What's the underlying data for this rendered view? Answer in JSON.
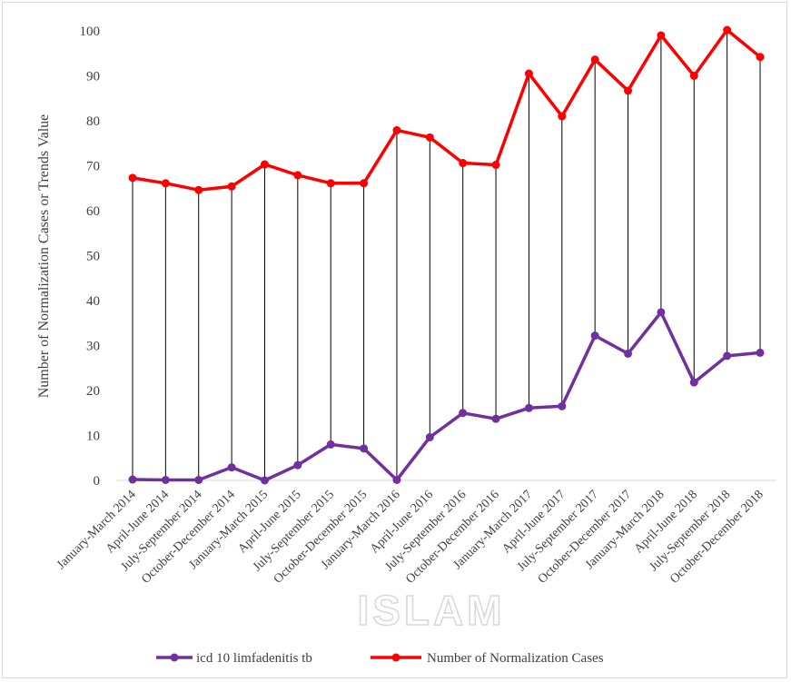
{
  "chart_data": {
    "type": "line",
    "ylabel": "Number of Normalization Cases or Trends Value",
    "xlabel": "",
    "ylim": [
      0,
      100
    ],
    "yticks": [
      0,
      10,
      20,
      30,
      40,
      50,
      60,
      70,
      80,
      90,
      100
    ],
    "grid": false,
    "legend_position": "bottom",
    "drop_lines": true,
    "categories": [
      "January-March 2014",
      "April-June 2014",
      "July-September 2014",
      "October-December 2014",
      "January-March 2015",
      "April-June 2015",
      "July-September 2015",
      "October-December 2015",
      "January-March 2016",
      "April-June 2016",
      "July-September 2016",
      "October-December 2016",
      "January-March 2017",
      "April-June 2017",
      "July-September 2017",
      "October-December 2017",
      "January-March 2018",
      "April-June 2018",
      "July-September 2018",
      "October-December 2018"
    ],
    "series": [
      {
        "name": "icd 10 limfadenitis tb",
        "color": "#7030a0",
        "values": [
          0.2,
          0.1,
          0.1,
          2.9,
          0.0,
          3.4,
          8.0,
          7.1,
          0.1,
          9.6,
          15.0,
          13.7,
          16.1,
          16.5,
          32.2,
          28.2,
          37.4,
          21.8,
          27.7,
          28.4
        ]
      },
      {
        "name": "Number of Normalization Cases",
        "color": "#ff0000",
        "values": [
          67.3,
          66.1,
          64.6,
          65.4,
          70.3,
          67.9,
          66.1,
          66.1,
          77.9,
          76.3,
          70.6,
          70.2,
          90.5,
          81.0,
          93.6,
          86.7,
          99.0,
          90.0,
          100.2,
          94.2
        ]
      }
    ]
  },
  "watermark": "ISLAM",
  "drop_line_color": "#000000"
}
